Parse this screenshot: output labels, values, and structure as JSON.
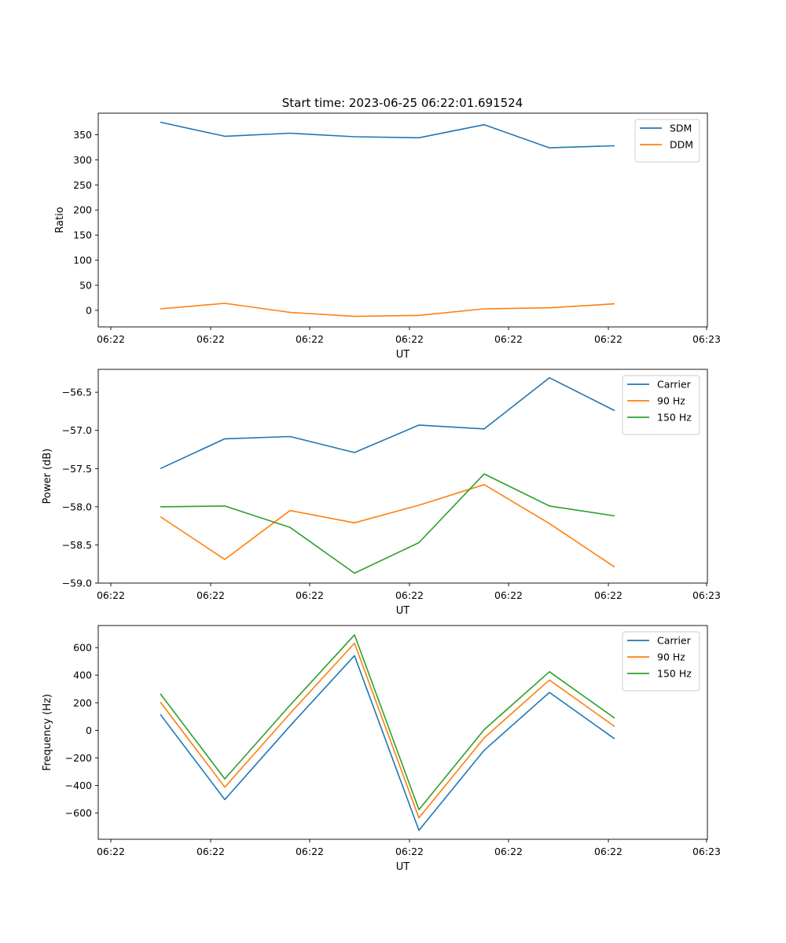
{
  "figure": {
    "title": "Start time: 2023-06-25 06:22:01.691524"
  },
  "chart_data": [
    {
      "type": "line",
      "xlabel": "UT",
      "ylabel": "Ratio",
      "xticklabels": [
        "06:22",
        "06:22",
        "06:22",
        "06:22",
        "06:22",
        "06:22",
        "06:23"
      ],
      "ylim": [
        -33,
        393
      ],
      "yticks": [
        0,
        50,
        100,
        150,
        200,
        250,
        300,
        350
      ],
      "yticklabels": [
        "0",
        "50",
        "100",
        "150",
        "200",
        "250",
        "300",
        "350"
      ],
      "legend_position": "top-right",
      "series": [
        {
          "name": "SDM",
          "color": "#1f77b4",
          "values": [
            375,
            347,
            353,
            346,
            344,
            370,
            324,
            328
          ]
        },
        {
          "name": "DDM",
          "color": "#ff7f0e",
          "values": [
            3,
            14,
            -4,
            -12,
            -10,
            3,
            5,
            13
          ]
        }
      ]
    },
    {
      "type": "line",
      "xlabel": "UT",
      "ylabel": "Power (dB)",
      "xticklabels": [
        "06:22",
        "06:22",
        "06:22",
        "06:22",
        "06:22",
        "06:22",
        "06:23"
      ],
      "ylim": [
        -59.0,
        -56.2
      ],
      "yticks": [
        -59.0,
        -58.5,
        -58.0,
        -57.5,
        -57.0,
        -56.5
      ],
      "yticklabels": [
        "−59.0",
        "−58.5",
        "−58.0",
        "−57.5",
        "−57.0",
        "−56.5"
      ],
      "legend_position": "top-right",
      "series": [
        {
          "name": "Carrier",
          "color": "#1f77b4",
          "values": [
            -57.5,
            -57.11,
            -57.08,
            -57.29,
            -56.93,
            -56.98,
            -56.31,
            -56.74
          ]
        },
        {
          "name": "90 Hz",
          "color": "#ff7f0e",
          "values": [
            -58.13,
            -58.69,
            -58.05,
            -58.21,
            -57.98,
            -57.71,
            -58.22,
            -58.79
          ]
        },
        {
          "name": "150 Hz",
          "color": "#2ca02c",
          "values": [
            -58.0,
            -57.99,
            -58.27,
            -58.87,
            -58.47,
            -57.57,
            -57.99,
            -58.12
          ]
        }
      ]
    },
    {
      "type": "line",
      "xlabel": "UT",
      "ylabel": "Frequency (Hz)",
      "xticklabels": [
        "06:22",
        "06:22",
        "06:22",
        "06:22",
        "06:22",
        "06:22",
        "06:23"
      ],
      "ylim": [
        -790,
        760
      ],
      "yticks": [
        -600,
        -400,
        -200,
        0,
        200,
        400,
        600
      ],
      "yticklabels": [
        "−600",
        "−400",
        "−200",
        "0",
        "200",
        "400",
        "600"
      ],
      "legend_position": "top-right",
      "series": [
        {
          "name": "Carrier",
          "color": "#1f77b4",
          "values": [
            115,
            -502,
            32,
            542,
            -725,
            -145,
            275,
            -62
          ]
        },
        {
          "name": "90 Hz",
          "color": "#ff7f0e",
          "values": [
            205,
            -412,
            122,
            632,
            -635,
            -55,
            365,
            28
          ]
        },
        {
          "name": "150 Hz",
          "color": "#2ca02c",
          "values": [
            265,
            -352,
            182,
            692,
            -575,
            5,
            425,
            88
          ]
        }
      ]
    }
  ]
}
